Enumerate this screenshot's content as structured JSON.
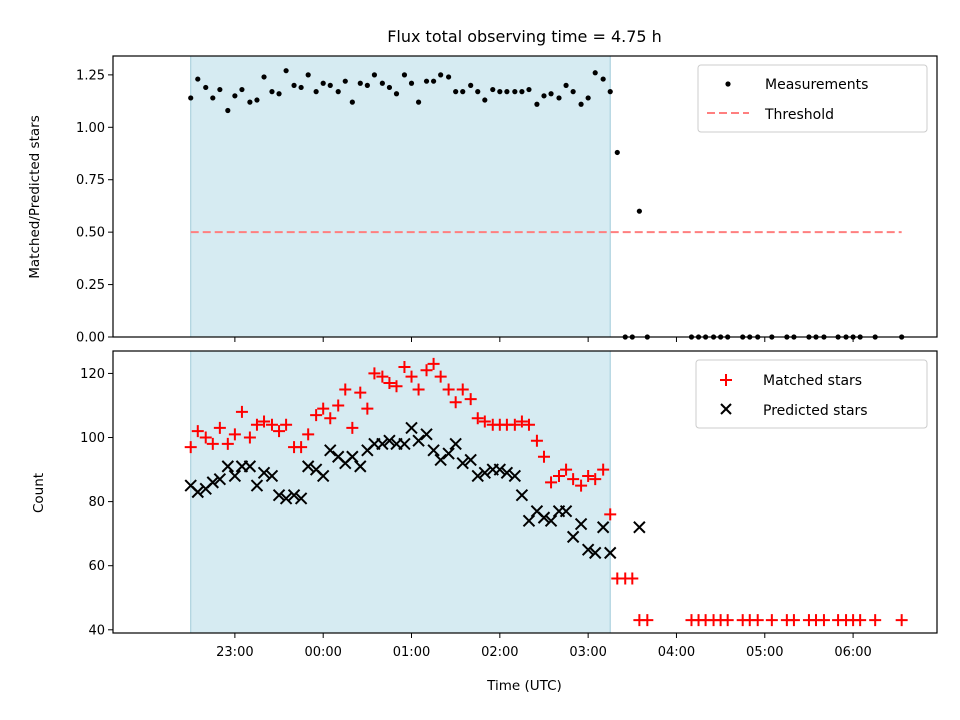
{
  "title": "Flux total observing time = 4.75 h",
  "x_axis": {
    "label": "Time (UTC)",
    "ticks": [
      "23:00",
      "00:00",
      "01:00",
      "02:00",
      "03:00",
      "04:00",
      "05:00",
      "06:00"
    ],
    "tick_hours": [
      23,
      24,
      25,
      26,
      27,
      28,
      29,
      30
    ],
    "range_hours": [
      21.62,
      30.95
    ],
    "note": "hours since 00:00 of the first UTC day; 24+ means next day"
  },
  "chart_data": [
    {
      "type": "scatter",
      "ylabel": "Matched/Predicted stars",
      "ylim": [
        0,
        1.34
      ],
      "yticks": [
        "0.00",
        "0.25",
        "0.50",
        "0.75",
        "1.00",
        "1.25"
      ],
      "ytick_values": [
        0,
        0.25,
        0.5,
        0.75,
        1.0,
        1.25
      ],
      "shaded_interval_hours": [
        22.5,
        27.25
      ],
      "shade_color": "#add8e6",
      "threshold": {
        "name": "Threshold",
        "y": 0.5,
        "x_range_hours": [
          22.5,
          30.55
        ],
        "color": "#ff7f7f",
        "style": "dashed"
      },
      "legend": [
        "Measurements",
        "Threshold"
      ],
      "legend_position": "upper right",
      "series": [
        {
          "name": "Measurements",
          "marker": "dot",
          "color": "#000000",
          "x": [
            22.5,
            22.58,
            22.67,
            22.75,
            22.83,
            22.92,
            23.0,
            23.08,
            23.17,
            23.25,
            23.33,
            23.42,
            23.5,
            23.58,
            23.67,
            23.75,
            23.83,
            23.92,
            24.0,
            24.08,
            24.17,
            24.25,
            24.33,
            24.42,
            24.5,
            24.58,
            24.67,
            24.75,
            24.83,
            24.92,
            25.0,
            25.08,
            25.17,
            25.25,
            25.33,
            25.42,
            25.5,
            25.58,
            25.67,
            25.75,
            25.83,
            25.92,
            26.0,
            26.08,
            26.17,
            26.25,
            26.33,
            26.42,
            26.5,
            26.58,
            26.67,
            26.75,
            26.83,
            26.92,
            27.0,
            27.08,
            27.17,
            27.25,
            27.33,
            27.42,
            27.5,
            27.58,
            27.67,
            28.17,
            28.25,
            28.33,
            28.42,
            28.5,
            28.58,
            28.75,
            28.83,
            28.92,
            29.08,
            29.25,
            29.33,
            29.5,
            29.58,
            29.67,
            29.83,
            29.92,
            30.0,
            30.08,
            30.25,
            30.55
          ],
          "y": [
            1.14,
            1.23,
            1.19,
            1.14,
            1.18,
            1.08,
            1.15,
            1.18,
            1.12,
            1.13,
            1.24,
            1.17,
            1.16,
            1.27,
            1.2,
            1.19,
            1.25,
            1.17,
            1.21,
            1.2,
            1.17,
            1.22,
            1.12,
            1.21,
            1.2,
            1.25,
            1.21,
            1.19,
            1.16,
            1.25,
            1.21,
            1.12,
            1.22,
            1.22,
            1.25,
            1.24,
            1.17,
            1.17,
            1.2,
            1.17,
            1.13,
            1.18,
            1.17,
            1.17,
            1.17,
            1.17,
            1.18,
            1.11,
            1.15,
            1.16,
            1.14,
            1.2,
            1.17,
            1.11,
            1.14,
            1.26,
            1.23,
            1.17,
            0.88,
            0.0,
            0.0,
            0.6,
            0.0,
            0.0,
            0.0,
            0.0,
            0.0,
            0.0,
            0.0,
            0.0,
            0.0,
            0.0,
            0.0,
            0.0,
            0.0,
            0.0,
            0.0,
            0.0,
            0.0,
            0.0,
            0.0,
            0.0,
            0.0,
            0.0
          ]
        }
      ]
    },
    {
      "type": "scatter",
      "ylabel": "Count",
      "ylim": [
        39,
        127
      ],
      "yticks": [
        "40",
        "60",
        "80",
        "100",
        "120"
      ],
      "ytick_values": [
        40,
        60,
        80,
        100,
        120
      ],
      "shaded_interval_hours": [
        22.5,
        27.25
      ],
      "shade_color": "#add8e6",
      "legend": [
        "Matched stars",
        "Predicted stars"
      ],
      "legend_position": "upper right",
      "series": [
        {
          "name": "Matched stars",
          "marker": "plus",
          "color": "#ff0000",
          "x": [
            22.5,
            22.58,
            22.67,
            22.75,
            22.83,
            22.92,
            23.0,
            23.08,
            23.17,
            23.25,
            23.33,
            23.42,
            23.5,
            23.58,
            23.67,
            23.75,
            23.83,
            23.92,
            24.0,
            24.08,
            24.17,
            24.25,
            24.33,
            24.42,
            24.5,
            24.58,
            24.67,
            24.75,
            24.83,
            24.92,
            25.0,
            25.08,
            25.17,
            25.25,
            25.33,
            25.42,
            25.5,
            25.58,
            25.67,
            25.75,
            25.83,
            25.92,
            26.0,
            26.08,
            26.17,
            26.25,
            26.33,
            26.42,
            26.5,
            26.58,
            26.67,
            26.75,
            26.83,
            26.92,
            27.0,
            27.08,
            27.17,
            27.25,
            27.33,
            27.42,
            27.5,
            27.58,
            27.67,
            28.17,
            28.25,
            28.33,
            28.42,
            28.5,
            28.58,
            28.75,
            28.83,
            28.92,
            29.08,
            29.25,
            29.33,
            29.5,
            29.58,
            29.67,
            29.83,
            29.92,
            30.0,
            30.08,
            30.25,
            30.55
          ],
          "y": [
            97,
            102,
            100,
            98,
            103,
            98,
            101,
            108,
            100,
            104,
            105,
            104,
            102,
            104,
            97,
            97,
            101,
            107,
            109,
            106,
            110,
            115,
            103,
            114,
            109,
            120,
            119,
            117,
            116,
            122,
            119,
            115,
            121,
            123,
            119,
            115,
            111,
            115,
            112,
            106,
            105,
            104,
            104,
            104,
            104,
            105,
            104,
            99,
            94,
            86,
            88,
            90,
            87,
            85,
            88,
            87,
            90,
            76,
            56,
            56,
            56,
            43,
            43,
            43,
            43,
            43,
            43,
            43,
            43,
            43,
            43,
            43,
            43,
            43,
            43,
            43,
            43,
            43,
            43,
            43,
            43,
            43,
            43,
            43
          ]
        },
        {
          "name": "Predicted stars",
          "marker": "x",
          "color": "#000000",
          "x": [
            22.5,
            22.58,
            22.67,
            22.75,
            22.83,
            22.92,
            23.0,
            23.08,
            23.17,
            23.25,
            23.33,
            23.42,
            23.5,
            23.58,
            23.67,
            23.75,
            23.83,
            23.92,
            24.0,
            24.08,
            24.17,
            24.25,
            24.33,
            24.42,
            24.5,
            24.58,
            24.67,
            24.75,
            24.83,
            24.92,
            25.0,
            25.08,
            25.17,
            25.25,
            25.33,
            25.42,
            25.5,
            25.58,
            25.67,
            25.75,
            25.83,
            25.92,
            26.0,
            26.08,
            26.17,
            26.25,
            26.33,
            26.42,
            26.5,
            26.58,
            26.67,
            26.75,
            26.83,
            26.92,
            27.0,
            27.08,
            27.17,
            27.25,
            27.58
          ],
          "y": [
            85,
            83,
            84,
            86,
            87,
            91,
            88,
            91,
            91,
            85,
            89,
            88,
            82,
            81,
            82,
            81,
            91,
            90,
            88,
            96,
            94,
            92,
            94,
            91,
            96,
            98,
            98,
            99,
            98,
            98,
            103,
            99,
            101,
            96,
            93,
            95,
            98,
            92,
            93,
            88,
            89,
            90,
            90,
            89,
            88,
            82,
            74,
            77,
            75,
            74,
            77,
            77,
            69,
            73,
            65,
            64,
            72,
            64,
            72
          ]
        }
      ]
    }
  ]
}
